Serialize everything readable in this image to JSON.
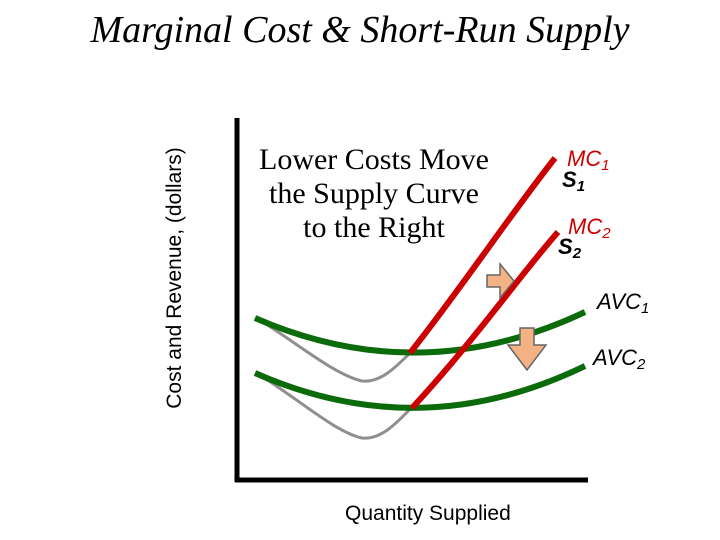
{
  "title": "Marginal Cost & Short-Run Supply",
  "y_axis_label": "Cost and Revenue, (dollars)",
  "x_axis_label": "Quantity Supplied",
  "callout_lines": [
    "Lower Costs Move",
    "the Supply Curve",
    "to the Right"
  ],
  "labels": {
    "mc1": {
      "base": "MC",
      "sub": "1"
    },
    "s1": {
      "base": "S",
      "sub": "1"
    },
    "mc2": {
      "base": "MC",
      "sub": "2"
    },
    "s2": {
      "base": "S",
      "sub": "2"
    },
    "avc1": {
      "base": "AVC",
      "sub": "1"
    },
    "avc2": {
      "base": "AVC",
      "sub": "2"
    }
  },
  "colors": {
    "mc": "#cc0000",
    "avc": "#0b6b0b",
    "atc": "#8f8f8f",
    "arrow_fill": "#f4b183",
    "arrow_stroke": "#666666",
    "axis": "#000000"
  }
}
